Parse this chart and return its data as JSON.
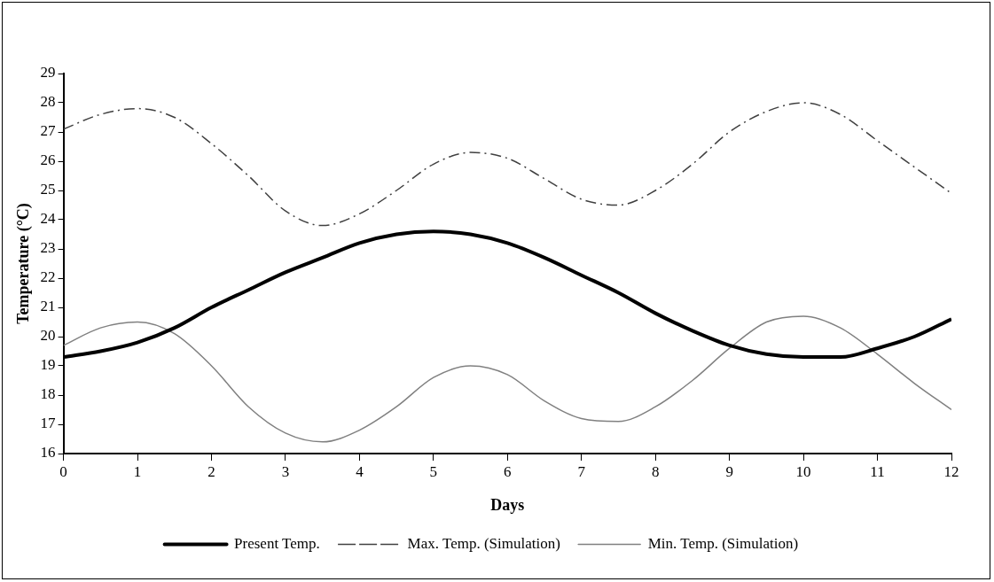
{
  "chart_data": {
    "type": "line",
    "xlabel": "Days",
    "ylabel": "Temperature (°C)",
    "x": [
      0,
      0.5,
      1,
      1.5,
      2,
      2.5,
      3,
      3.5,
      4,
      4.5,
      5,
      5.5,
      6,
      6.5,
      7,
      7.5,
      8,
      8.5,
      9,
      9.5,
      10,
      10.5,
      11,
      11.5,
      12
    ],
    "series": [
      {
        "name": "Present Temp.",
        "color": "#000000",
        "line_style": "solid",
        "values": [
          19.3,
          19.5,
          19.8,
          20.3,
          21.0,
          21.6,
          22.2,
          22.7,
          23.2,
          23.5,
          23.6,
          23.5,
          23.2,
          22.7,
          22.1,
          21.5,
          20.8,
          20.2,
          19.7,
          19.4,
          19.3,
          19.3,
          19.6,
          20.0,
          20.6
        ]
      },
      {
        "name": "Max. Temp. (Simulation)",
        "color": "#404040",
        "line_style": "dashed",
        "values": [
          27.1,
          27.6,
          27.8,
          27.5,
          26.6,
          25.5,
          24.3,
          23.8,
          24.2,
          25.0,
          25.9,
          26.3,
          26.1,
          25.4,
          24.7,
          24.5,
          25.0,
          25.9,
          27.0,
          27.7,
          28.0,
          27.6,
          26.7,
          25.8,
          24.9
        ]
      },
      {
        "name": "Min. Temp. (Simulation)",
        "color": "#808080",
        "line_style": "solid",
        "values": [
          19.7,
          20.3,
          20.5,
          20.1,
          19.0,
          17.6,
          16.7,
          16.4,
          16.8,
          17.6,
          18.6,
          19.0,
          18.7,
          17.8,
          17.2,
          17.1,
          17.6,
          18.5,
          19.6,
          20.5,
          20.7,
          20.3,
          19.4,
          18.4,
          17.5
        ]
      }
    ],
    "xlim": [
      0,
      12
    ],
    "xticks": [
      0,
      1,
      2,
      3,
      4,
      5,
      6,
      7,
      8,
      9,
      10,
      11,
      12
    ],
    "ylim": [
      16,
      29
    ],
    "yticks": [
      16,
      17,
      18,
      19,
      20,
      21,
      22,
      23,
      24,
      25,
      26,
      27,
      28,
      29
    ],
    "grid": false,
    "legend": "bottom",
    "marker": "none"
  }
}
